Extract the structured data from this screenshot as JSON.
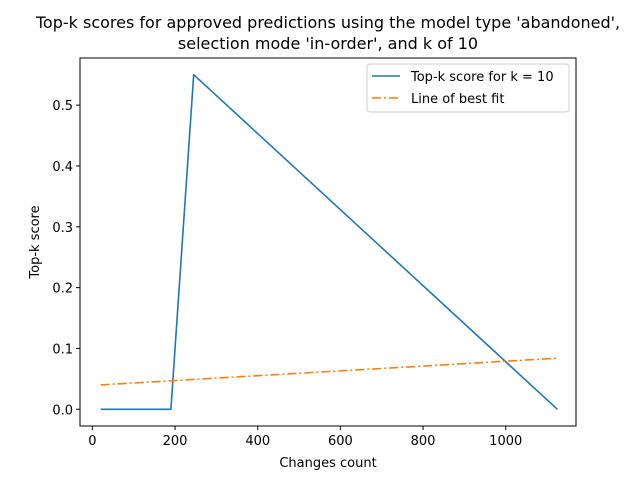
{
  "chart_data": {
    "type": "line",
    "title_lines": [
      "Top-k scores for approved predictions using the model type 'abandoned',",
      "selection mode 'in-order', and k of 10"
    ],
    "xlabel": "Changes count",
    "ylabel": "Top-k score",
    "xlim": [
      -30,
      1170
    ],
    "ylim": [
      -0.0275,
      0.5775
    ],
    "xticks": [
      0,
      200,
      400,
      600,
      800,
      1000
    ],
    "yticks": [
      0.0,
      0.1,
      0.2,
      0.3,
      0.4,
      0.5
    ],
    "xtick_labels": [
      "0",
      "200",
      "400",
      "600",
      "800",
      "1000"
    ],
    "ytick_labels": [
      "0.0",
      "0.1",
      "0.2",
      "0.3",
      "0.4",
      "0.5"
    ],
    "grid": false,
    "legend_position": "top-right",
    "series": [
      {
        "name": "Top-k score for k = 10",
        "style": "solid",
        "color": "#1f77b4",
        "x": [
          20,
          190,
          245,
          1125
        ],
        "y": [
          0.0,
          0.0,
          0.55,
          0.0
        ]
      },
      {
        "name": "Line of best fit",
        "style": "dashdot",
        "color": "#ff7f0e",
        "x": [
          20,
          1125
        ],
        "y": [
          0.04,
          0.084
        ]
      }
    ]
  }
}
